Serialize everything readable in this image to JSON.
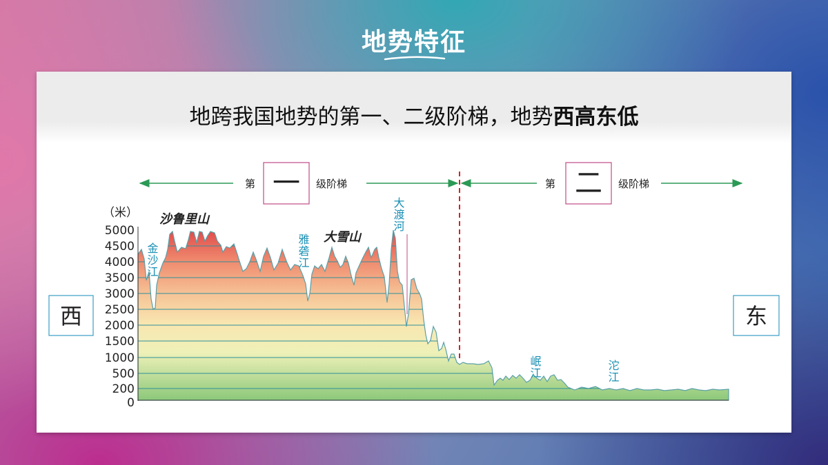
{
  "title": "地势特征",
  "subtitle": {
    "normal": "地跨我国地势的第一、二级阶梯，地势",
    "bold": "西高东低"
  },
  "diagram": {
    "unit_label": "（米）",
    "y_ticks": [
      "5000",
      "4500",
      "4000",
      "3500",
      "3000",
      "2500",
      "2000",
      "1500",
      "1000",
      "500",
      "200",
      "0"
    ],
    "direction_west": "西",
    "direction_east": "东",
    "step1": {
      "prefix": "第",
      "number": "一",
      "suffix": "级阶梯"
    },
    "step2": {
      "prefix": "第",
      "number": "二",
      "suffix": "级阶梯"
    },
    "mountains": [
      "沙鲁里山",
      "大雪山"
    ],
    "rivers": [
      "金沙江",
      "雅砻江",
      "大渡河",
      "岷江",
      "沱江"
    ],
    "colors": {
      "arrow": "#2a9a55",
      "divider": "#d2232a",
      "box_border": "#c04a86",
      "river_text": "#1a8fb5",
      "grid": "#2f8f9b"
    }
  }
}
